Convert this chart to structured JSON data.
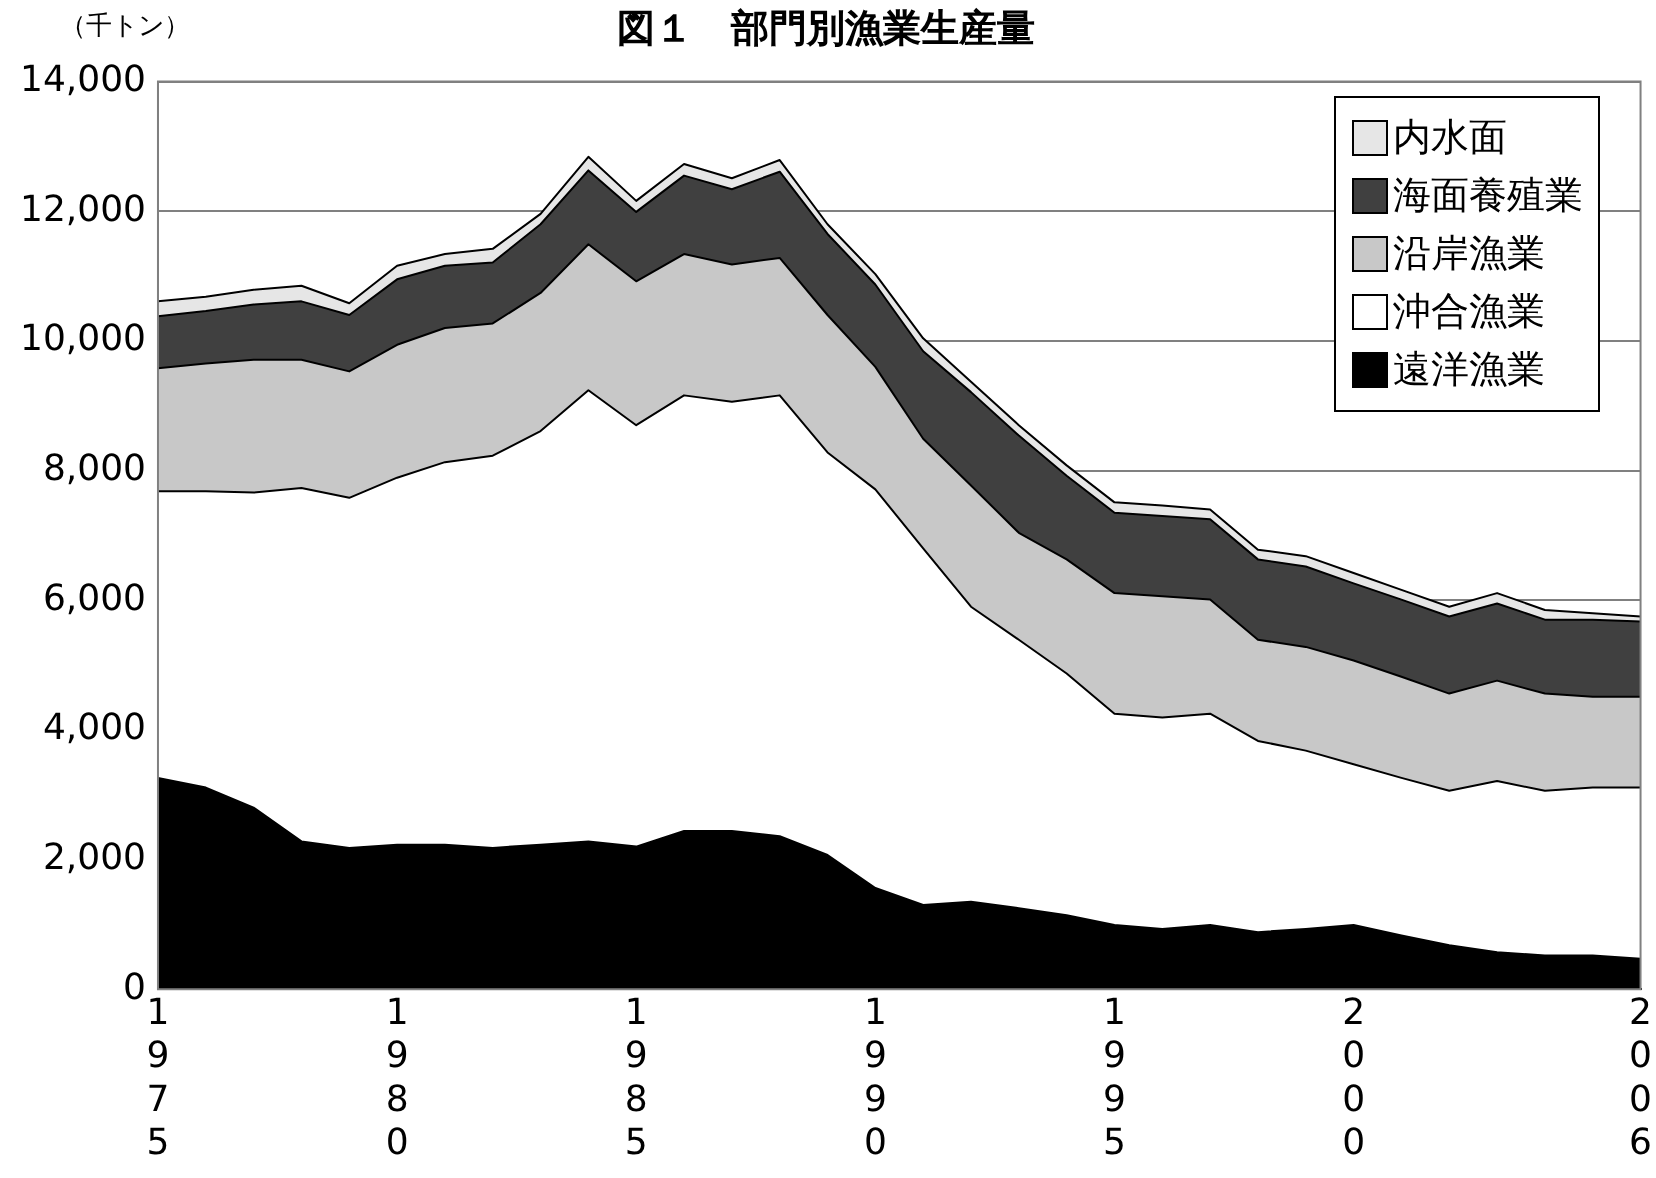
{
  "chart_data": {
    "type": "area",
    "title": "図１　部門別漁業生産量",
    "ylabel": "（千トン）",
    "categories": [
      "1975",
      null,
      null,
      null,
      null,
      "1980",
      null,
      null,
      null,
      null,
      "1985",
      null,
      null,
      null,
      null,
      "1990",
      null,
      null,
      null,
      null,
      "1995",
      null,
      null,
      null,
      null,
      "2000",
      null,
      null,
      null,
      null,
      null,
      "2006"
    ],
    "stacked": true,
    "ylim": [
      0,
      14000
    ],
    "yticks": [
      0,
      {
        "value": 2000,
        "label": "2,000"
      },
      {
        "value": 4000,
        "label": "4,000"
      },
      {
        "value": 6000,
        "label": "6,000"
      },
      {
        "value": 8000,
        "label": "8,000"
      },
      {
        "value": 10000,
        "label": "10,000"
      },
      {
        "value": 12000,
        "label": "12,000"
      },
      {
        "value": 14000,
        "label": "14,000"
      }
    ],
    "grid": "y",
    "legend": "top right",
    "marker": "none",
    "series": [
      {
        "name": "遠洋漁業",
        "color": "#000000",
        "values": [
          3260,
          3110,
          2800,
          2280,
          2180,
          2230,
          2230,
          2180,
          2230,
          2280,
          2200,
          2440,
          2440,
          2360,
          2070,
          1560,
          1300,
          1350,
          1250,
          1140,
          990,
          930,
          990,
          880,
          930,
          990,
          830,
          680,
          570,
          520,
          520,
          470
        ]
      },
      {
        "name": "沖合漁業",
        "color": "#ffffff",
        "values": [
          4420,
          4570,
          4860,
          5450,
          5400,
          5660,
          5900,
          6050,
          6380,
          6960,
          6500,
          6720,
          6620,
          6800,
          6210,
          6150,
          5500,
          4550,
          4140,
          3730,
          3260,
          3260,
          3260,
          2950,
          2750,
          2480,
          2430,
          2380,
          2640,
          2540,
          2590,
          2640
        ]
      },
      {
        "name": "沿岸漁業",
        "color": "#c8c8c8",
        "values": [
          1900,
          1970,
          2050,
          1980,
          1950,
          2050,
          2070,
          2040,
          2130,
          2250,
          2220,
          2180,
          2120,
          2120,
          2120,
          1890,
          1690,
          1870,
          1650,
          1760,
          1860,
          1870,
          1760,
          1560,
          1600,
          1600,
          1560,
          1500,
          1550,
          1500,
          1400,
          1400
        ]
      },
      {
        "name": "海面養殖業",
        "color": "#404040",
        "values": [
          800,
          810,
          850,
          900,
          870,
          1010,
          960,
          940,
          1060,
          1140,
          1070,
          1210,
          1160,
          1330,
          1250,
          1270,
          1350,
          1440,
          1500,
          1290,
          1240,
          1240,
          1240,
          1240,
          1240,
          1190,
          1190,
          1190,
          1190,
          1140,
          1190,
          1160
        ]
      },
      {
        "name": "内水面",
        "color": "#e6e6e6",
        "values": [
          230,
          220,
          230,
          240,
          180,
          210,
          180,
          210,
          160,
          210,
          170,
          180,
          170,
          180,
          150,
          160,
          200,
          160,
          160,
          160,
          160,
          160,
          150,
          150,
          160,
          160,
          150,
          150,
          160,
          150,
          100,
          80
        ]
      }
    ]
  }
}
